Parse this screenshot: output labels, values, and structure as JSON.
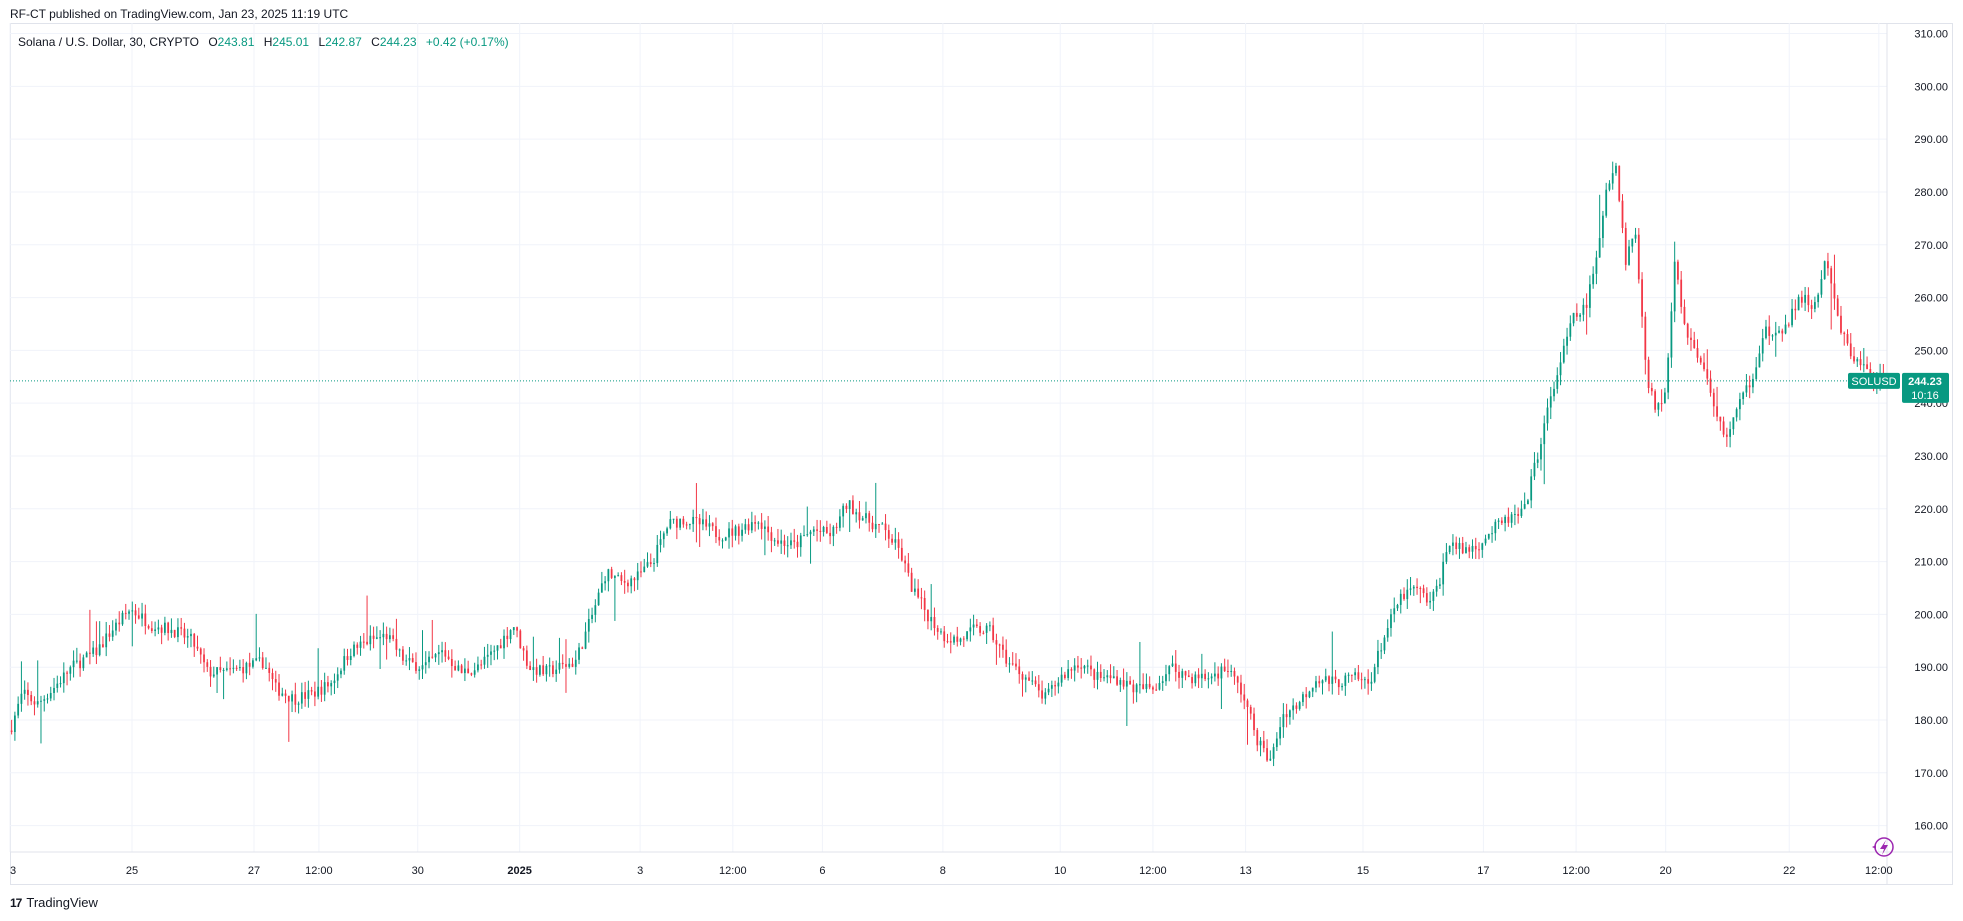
{
  "caption": "RF-CT published on TradingView.com, Jan 23, 2025 11:19 UTC",
  "legend": {
    "symbol": "Solana / U.S. Dollar, 30, CRYPTO",
    "open_label": "O",
    "open": "243.81",
    "high_label": "H",
    "high": "245.01",
    "low_label": "L",
    "low": "242.87",
    "close_label": "C",
    "close": "244.23",
    "change": "+0.42 (+0.17%)"
  },
  "price_tag": {
    "ticker": "SOLUSD",
    "price": "244.23",
    "countdown": "10:16"
  },
  "brand": {
    "logo": "17",
    "name": "TradingView"
  },
  "colors": {
    "up": "#089981",
    "down": "#f23645",
    "grid": "#f0f3fa",
    "text": "#131722"
  },
  "icons": {
    "replay": "lightning-bolt-icon"
  },
  "chart_data": {
    "type": "candlestick",
    "series_name": "SOLUSD",
    "timeframe": "30",
    "ylim": [
      155,
      312
    ],
    "y_ticks": [
      160,
      170,
      180,
      190,
      200,
      210,
      220,
      230,
      240,
      250,
      260,
      270,
      280,
      290,
      300,
      310
    ],
    "y_tick_labels": [
      "160.00",
      "170.00",
      "180.00",
      "190.00",
      "200.00",
      "210.00",
      "220.00",
      "230.00",
      "240.00",
      "250.00",
      "260.00",
      "270.00",
      "280.00",
      "290.00",
      "300.00",
      "310.00"
    ],
    "x_ticks": [
      {
        "label": "3",
        "x": 0.0,
        "bold": false
      },
      {
        "label": "25",
        "x": 3.95,
        "bold": false
      },
      {
        "label": "27",
        "x": 7.9,
        "bold": false
      },
      {
        "label": "12:00",
        "x": 10.0,
        "bold": false
      },
      {
        "label": "30",
        "x": 13.2,
        "bold": false
      },
      {
        "label": "2025",
        "x": 16.5,
        "bold": true
      },
      {
        "label": "3",
        "x": 20.4,
        "bold": false
      },
      {
        "label": "12:00",
        "x": 23.4,
        "bold": false
      },
      {
        "label": "6",
        "x": 26.3,
        "bold": false
      },
      {
        "label": "8",
        "x": 30.2,
        "bold": false
      },
      {
        "label": "10",
        "x": 34.0,
        "bold": false
      },
      {
        "label": "12:00",
        "x": 37.0,
        "bold": false
      },
      {
        "label": "13",
        "x": 40.0,
        "bold": false
      },
      {
        "label": "15",
        "x": 43.8,
        "bold": false
      },
      {
        "label": "17",
        "x": 47.7,
        "bold": false
      },
      {
        "label": "12:00",
        "x": 50.7,
        "bold": false
      },
      {
        "label": "20",
        "x": 53.6,
        "bold": false
      },
      {
        "label": "22",
        "x": 57.6,
        "bold": false
      },
      {
        "label": "12:00",
        "x": 60.5,
        "bold": false
      }
    ],
    "x_range": [
      0,
      60.7
    ],
    "price_path": [
      [
        0.0,
        178
      ],
      [
        0.4,
        185
      ],
      [
        0.9,
        183
      ],
      [
        1.4,
        186
      ],
      [
        2.0,
        190
      ],
      [
        2.8,
        193
      ],
      [
        3.3,
        197
      ],
      [
        3.9,
        201
      ],
      [
        4.6,
        198
      ],
      [
        5.3,
        197
      ],
      [
        5.9,
        195
      ],
      [
        6.4,
        189
      ],
      [
        7.0,
        189
      ],
      [
        7.6,
        190
      ],
      [
        8.2,
        191
      ],
      [
        8.6,
        186
      ],
      [
        9.2,
        184
      ],
      [
        9.8,
        185
      ],
      [
        10.4,
        187
      ],
      [
        11.0,
        193
      ],
      [
        11.6,
        195
      ],
      [
        12.2,
        196
      ],
      [
        12.8,
        191
      ],
      [
        13.4,
        190
      ],
      [
        14.0,
        193
      ],
      [
        14.6,
        189
      ],
      [
        15.2,
        190
      ],
      [
        15.8,
        194
      ],
      [
        16.3,
        198
      ],
      [
        16.8,
        190
      ],
      [
        17.3,
        189
      ],
      [
        17.8,
        190
      ],
      [
        18.3,
        191
      ],
      [
        18.8,
        199
      ],
      [
        19.3,
        208
      ],
      [
        19.8,
        206
      ],
      [
        20.3,
        207
      ],
      [
        20.8,
        210
      ],
      [
        21.3,
        217
      ],
      [
        21.8,
        218
      ],
      [
        22.4,
        217
      ],
      [
        23.0,
        215
      ],
      [
        23.6,
        216
      ],
      [
        24.2,
        218
      ],
      [
        24.8,
        214
      ],
      [
        25.4,
        213
      ],
      [
        26.0,
        216
      ],
      [
        26.6,
        215
      ],
      [
        27.1,
        221
      ],
      [
        27.7,
        218
      ],
      [
        28.3,
        216
      ],
      [
        28.8,
        212
      ],
      [
        29.2,
        205
      ],
      [
        29.7,
        200
      ],
      [
        30.2,
        196
      ],
      [
        30.7,
        195
      ],
      [
        31.2,
        197
      ],
      [
        31.7,
        197
      ],
      [
        32.3,
        191
      ],
      [
        32.9,
        188
      ],
      [
        33.5,
        184
      ],
      [
        34.0,
        188
      ],
      [
        34.6,
        191
      ],
      [
        35.2,
        188
      ],
      [
        35.8,
        188
      ],
      [
        36.4,
        186
      ],
      [
        37.0,
        186
      ],
      [
        37.6,
        190
      ],
      [
        38.2,
        188
      ],
      [
        38.8,
        188
      ],
      [
        39.4,
        190
      ],
      [
        39.9,
        185
      ],
      [
        40.4,
        176
      ],
      [
        40.8,
        172
      ],
      [
        41.2,
        181
      ],
      [
        41.7,
        183
      ],
      [
        42.3,
        188
      ],
      [
        42.9,
        187
      ],
      [
        43.5,
        188
      ],
      [
        44.0,
        187
      ],
      [
        44.5,
        196
      ],
      [
        45.0,
        203
      ],
      [
        45.5,
        205
      ],
      [
        46.0,
        202
      ],
      [
        46.3,
        207
      ],
      [
        46.6,
        214
      ],
      [
        47.0,
        212
      ],
      [
        47.5,
        213
      ],
      [
        48.0,
        216
      ],
      [
        48.5,
        218
      ],
      [
        49.0,
        219
      ],
      [
        49.4,
        229
      ],
      [
        49.8,
        239
      ],
      [
        50.2,
        248
      ],
      [
        50.6,
        256
      ],
      [
        51.0,
        258
      ],
      [
        51.4,
        268
      ],
      [
        51.7,
        282
      ],
      [
        52.0,
        285
      ],
      [
        52.3,
        267
      ],
      [
        52.6,
        273
      ],
      [
        53.0,
        245
      ],
      [
        53.3,
        238
      ],
      [
        53.6,
        243
      ],
      [
        53.9,
        268
      ],
      [
        54.2,
        255
      ],
      [
        54.6,
        249
      ],
      [
        55.0,
        244
      ],
      [
        55.3,
        236
      ],
      [
        55.6,
        234
      ],
      [
        56.0,
        240
      ],
      [
        56.4,
        245
      ],
      [
        56.8,
        254
      ],
      [
        57.2,
        252
      ],
      [
        57.6,
        256
      ],
      [
        58.0,
        260
      ],
      [
        58.4,
        258
      ],
      [
        58.8,
        267
      ],
      [
        59.2,
        255
      ],
      [
        59.6,
        249
      ],
      [
        60.0,
        247
      ],
      [
        60.3,
        244.2
      ]
    ],
    "candle_count": 575,
    "wick_noise": 2.2,
    "last_price": 244.23
  }
}
